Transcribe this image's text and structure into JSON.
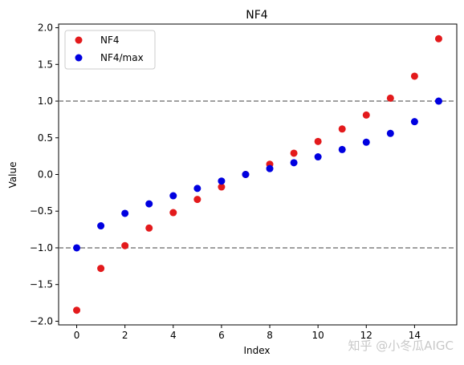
{
  "chart_data": {
    "type": "scatter",
    "title": "NF4",
    "xlabel": "Index",
    "ylabel": "Value",
    "xlim": [
      -0.75,
      15.75
    ],
    "ylim": [
      -2.05,
      2.05
    ],
    "xticks": [
      0,
      2,
      4,
      6,
      8,
      10,
      12,
      14
    ],
    "xtick_labels": [
      "0",
      "2",
      "4",
      "6",
      "8",
      "10",
      "12",
      "14"
    ],
    "yticks": [
      -2.0,
      -1.5,
      -1.0,
      -0.5,
      0.0,
      0.5,
      1.0,
      1.5,
      2.0
    ],
    "ytick_labels": [
      "−2.0",
      "−1.5",
      "−1.0",
      "−0.5",
      "0.0",
      "0.5",
      "1.0",
      "1.5",
      "2.0"
    ],
    "hlines": [
      {
        "y": 1.0,
        "color": "#808080",
        "style": "dashed"
      },
      {
        "y": -1.0,
        "color": "#808080",
        "style": "dashed"
      }
    ],
    "grid": false,
    "legend_position": "top-left",
    "x": [
      0,
      1,
      2,
      3,
      4,
      5,
      6,
      7,
      8,
      9,
      10,
      11,
      12,
      13,
      14,
      15
    ],
    "series": [
      {
        "name": "NF4",
        "color": "#e31a1c",
        "values": [
          -1.85,
          -1.28,
          -0.97,
          -0.73,
          -0.52,
          -0.34,
          -0.17,
          0.0,
          0.14,
          0.29,
          0.45,
          0.62,
          0.81,
          1.04,
          1.34,
          1.85
        ]
      },
      {
        "name": "NF4/max",
        "color": "#0000e0",
        "values": [
          -1.0,
          -0.7,
          -0.53,
          -0.4,
          -0.29,
          -0.19,
          -0.09,
          0.0,
          0.08,
          0.16,
          0.24,
          0.34,
          0.44,
          0.56,
          0.72,
          1.0
        ]
      }
    ]
  },
  "watermark": "知乎 @小冬瓜AIGC"
}
